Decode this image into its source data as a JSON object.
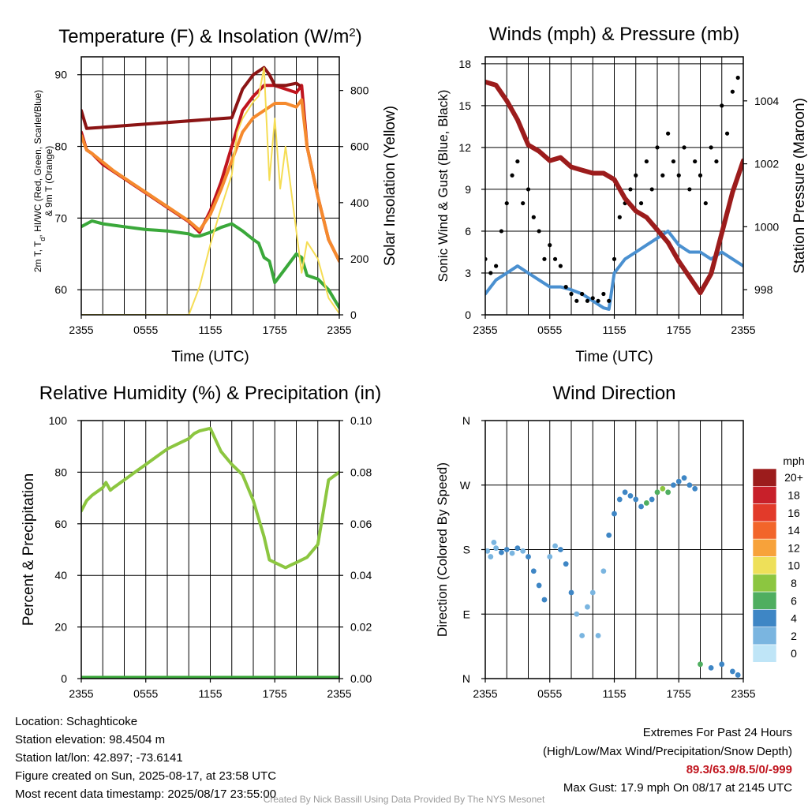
{
  "colors": {
    "temp_red": "#c0151e",
    "temp_dark": "#8b1414",
    "nine_m_orange": "#f58a2e",
    "dewpoint_green": "#3aa83a",
    "insolation_yellow": "#f5dd55",
    "wind_blue": "#4a90d0",
    "gust_black": "#000000",
    "pressure_maroon": "#9c1c1c",
    "rh_green": "#8cc640",
    "precip_green": "#3aa83a",
    "extremes_red": "#c0151e",
    "credit_gray": "#9a9a9a"
  },
  "chart_data": [
    {
      "type": "line",
      "title": "Temperature (F) & Insolation (W/m²)",
      "xlabel": "Time (UTC)",
      "ylabel": "2m T, Td, HI/WC (Red, Green, Scarlet/Blue) & 9m T (Orange)",
      "y2label": "Solar Insolation (Yellow)",
      "x_ticks": [
        "2355",
        "0555",
        "1155",
        "1755",
        "2355"
      ],
      "y_ticks": [
        60,
        70,
        80,
        90
      ],
      "y2_ticks": [
        0,
        200,
        400,
        600,
        800
      ],
      "ylim": [
        56.5,
        92.5
      ],
      "y2lim": [
        0,
        920
      ],
      "xlim": [
        0,
        24
      ],
      "grid": true,
      "series": [
        {
          "name": "2m T",
          "color": "#c0151e",
          "x": [
            0,
            0.5,
            1,
            2,
            3,
            4,
            5,
            6,
            7,
            8,
            9,
            10,
            11,
            12,
            13,
            14,
            15,
            16,
            17,
            18,
            19,
            20,
            20.5,
            21,
            22,
            23,
            24
          ],
          "y": [
            82,
            79.5,
            79,
            77.5,
            76.5,
            75.5,
            74.5,
            73.5,
            72.5,
            71.5,
            70.5,
            69.5,
            68,
            71,
            75,
            80,
            85,
            87,
            88.5,
            88.5,
            88,
            87.5,
            88.5,
            80,
            73,
            67,
            64
          ]
        },
        {
          "name": "9m T",
          "color": "#f58a2e",
          "x": [
            0,
            0.5,
            1,
            2,
            3,
            4,
            5,
            6,
            7,
            8,
            9,
            10,
            11,
            12,
            13,
            14,
            15,
            16,
            17,
            18,
            19,
            20,
            20.5,
            21,
            22,
            23,
            24
          ],
          "y": [
            81.5,
            79.5,
            79,
            77.8,
            76.6,
            75.6,
            74.6,
            73.6,
            72.6,
            71.6,
            70.6,
            69.6,
            68.3,
            70.5,
            74,
            78,
            82,
            84,
            85,
            86,
            86,
            85.5,
            86.5,
            80,
            73,
            67,
            64
          ]
        },
        {
          "name": "HI/WC",
          "color": "#8b1414",
          "x": [
            0,
            0.5,
            14,
            15,
            16,
            17,
            17.5,
            18,
            19,
            20,
            20.3
          ],
          "y": [
            85,
            82.5,
            84,
            88,
            90,
            91,
            90,
            88.5,
            88.5,
            88.8,
            88.5
          ]
        },
        {
          "name": "Td",
          "color": "#3aa83a",
          "x": [
            0,
            1,
            2,
            3,
            4,
            5,
            6,
            7,
            8,
            9,
            10,
            10.5,
            11,
            12,
            13,
            14,
            15,
            16,
            16.5,
            17,
            17.5,
            18,
            19,
            20,
            20.5,
            21,
            22,
            23,
            24
          ],
          "y": [
            68.8,
            69.6,
            69.2,
            69,
            68.8,
            68.6,
            68.4,
            68.3,
            68.2,
            68,
            67.8,
            67.5,
            67.5,
            68,
            68.7,
            69.2,
            68.2,
            67,
            66.5,
            64.5,
            64,
            61,
            63,
            65,
            64.5,
            62,
            61.5,
            60,
            57.5
          ]
        },
        {
          "name": "Insolation",
          "color": "#f5dd55",
          "axis": "y2",
          "x": [
            0,
            10,
            11,
            12,
            13,
            14,
            14.5,
            15,
            16,
            16.5,
            17,
            17.5,
            18,
            18.5,
            19,
            20,
            20.5,
            21,
            22,
            23,
            24
          ],
          "y": [
            0,
            0,
            100,
            250,
            380,
            500,
            650,
            700,
            760,
            780,
            880,
            480,
            700,
            450,
            600,
            300,
            150,
            260,
            200,
            60,
            5
          ]
        }
      ]
    },
    {
      "type": "line",
      "title": "Winds (mph) & Pressure (mb)",
      "xlabel": "Time (UTC)",
      "ylabel": "Sonic Wind & Gust (Blue, Black)",
      "y2label": "Station Pressure (Maroon)",
      "x_ticks": [
        "2355",
        "0555",
        "1155",
        "1755",
        "2355"
      ],
      "y_ticks": [
        0,
        3,
        6,
        9,
        12,
        15,
        18
      ],
      "y2_ticks": [
        998,
        1000,
        1002,
        1004
      ],
      "ylim": [
        0,
        18.5
      ],
      "y2lim": [
        997.2,
        1005.4
      ],
      "xlim": [
        0,
        24
      ],
      "grid": true,
      "series": [
        {
          "name": "Sonic Wind",
          "color": "#4a90d0",
          "x": [
            0,
            1,
            2,
            3,
            4,
            5,
            6,
            7,
            8,
            9,
            10,
            11,
            11.5,
            12,
            13,
            14,
            15,
            16,
            17,
            18,
            19,
            20,
            21,
            22,
            23,
            24
          ],
          "y": [
            1.5,
            2.5,
            3,
            3.5,
            3,
            2.5,
            2,
            2,
            1.8,
            1.5,
            1,
            0.5,
            0.4,
            3,
            4,
            4.5,
            5,
            5.5,
            6,
            5,
            4.5,
            4.5,
            4,
            4.5,
            4,
            3.5
          ]
        },
        {
          "name": "Gust",
          "color": "#000000",
          "mode": "markers",
          "x": [
            0,
            0.5,
            1,
            1.5,
            2,
            2.5,
            3,
            3.5,
            4,
            4.5,
            5,
            5.5,
            6,
            6.5,
            7,
            7.5,
            8,
            8.5,
            9,
            9.5,
            10,
            10.5,
            11,
            11.5,
            12,
            12.5,
            13,
            13.5,
            14,
            14.5,
            15,
            15.5,
            16,
            16.5,
            17,
            17.5,
            18,
            18.5,
            19,
            19.5,
            20,
            20.5,
            21,
            21.5,
            22,
            22.5,
            23,
            23.5
          ],
          "y": [
            4,
            3,
            3.5,
            6,
            8,
            10,
            11,
            8,
            9,
            7,
            6,
            4,
            5,
            4,
            3.5,
            2,
            1.5,
            1,
            1.5,
            1,
            1.2,
            1,
            1.5,
            1,
            4,
            7,
            8,
            9,
            10,
            8,
            11,
            9,
            12,
            10,
            13,
            11,
            10,
            12,
            9,
            11,
            10,
            8,
            12,
            11,
            15,
            13,
            16,
            17
          ]
        },
        {
          "name": "Pressure",
          "color": "#9c1c1c",
          "axis": "y2",
          "x": [
            0,
            1,
            2,
            3,
            4,
            5,
            6,
            7,
            8,
            9,
            10,
            11,
            12,
            13,
            14,
            15,
            16,
            17,
            18,
            19,
            20,
            21,
            22,
            23,
            24
          ],
          "y": [
            1004.6,
            1004.5,
            1004.0,
            1003.4,
            1002.6,
            1002.4,
            1002.1,
            1002.2,
            1001.9,
            1001.8,
            1001.7,
            1001.7,
            1001.5,
            1000.9,
            1000.5,
            1000.3,
            999.9,
            999.5,
            998.9,
            998.4,
            997.9,
            998.5,
            999.8,
            1001.1,
            1002.1
          ]
        }
      ]
    },
    {
      "type": "line",
      "title": "Relative Humidity (%) & Precipitation (in)",
      "xlabel": "",
      "ylabel": "Percent & Precipitation",
      "x_ticks": [
        "2355",
        "0555",
        "1155",
        "1755",
        "2355"
      ],
      "y_ticks": [
        0,
        20,
        40,
        60,
        80,
        100
      ],
      "y2_ticks": [
        "0.00",
        "0.02",
        "0.04",
        "0.06",
        "0.08",
        "0.10"
      ],
      "ylim": [
        0,
        100
      ],
      "y2lim": [
        0,
        0.1
      ],
      "xlim": [
        0,
        24
      ],
      "grid": true,
      "series": [
        {
          "name": "RH",
          "color": "#8cc640",
          "x": [
            0,
            0.5,
            1,
            2,
            2.3,
            2.7,
            3,
            4,
            5,
            6,
            7,
            8,
            9,
            10,
            10.5,
            11,
            12,
            13,
            14,
            15,
            16,
            16.5,
            17,
            17.5,
            18,
            19,
            19.5,
            20,
            21,
            22,
            23,
            24
          ],
          "y": [
            65,
            69,
            71,
            74,
            76,
            73,
            74,
            77,
            80,
            83,
            86,
            89,
            91,
            93,
            95,
            96,
            97,
            88,
            83,
            79,
            69,
            62,
            55,
            46,
            45,
            43,
            44,
            45,
            47,
            52,
            77,
            80
          ]
        },
        {
          "name": "Precipitation",
          "color": "#3aa83a",
          "axis": "y2",
          "x": [
            0,
            24
          ],
          "y": [
            0,
            0
          ]
        }
      ]
    },
    {
      "type": "scatter",
      "title": "Wind Direction",
      "xlabel": "",
      "ylabel": "Direction (Colored By Speed)",
      "x_ticks": [
        "2355",
        "0555",
        "1155",
        "1755",
        "2355"
      ],
      "y_ticks": [
        "N",
        "E",
        "S",
        "W",
        "N"
      ],
      "ylim": [
        0,
        360
      ],
      "xlim": [
        0,
        24
      ],
      "grid": true,
      "colorbar": {
        "title": "mph",
        "labels": [
          "20+",
          "18",
          "16",
          "14",
          "12",
          "10",
          "8",
          "6",
          "4",
          "2",
          "0"
        ],
        "colors": [
          "#9c1c1c",
          "#c8202a",
          "#e23a2a",
          "#f2652a",
          "#f7a23a",
          "#eee059",
          "#8cc640",
          "#4fae60",
          "#3e86c5",
          "#7ab5e0",
          "#bfe5f7"
        ]
      },
      "points": [
        {
          "x": 0.2,
          "y": 178,
          "s": 2
        },
        {
          "x": 0.5,
          "y": 170,
          "s": 1
        },
        {
          "x": 0.8,
          "y": 190,
          "s": 1
        },
        {
          "x": 1,
          "y": 182,
          "s": 2
        },
        {
          "x": 1.5,
          "y": 176,
          "s": 3
        },
        {
          "x": 2,
          "y": 180,
          "s": 3
        },
        {
          "x": 2.5,
          "y": 175,
          "s": 2
        },
        {
          "x": 3,
          "y": 182,
          "s": 3
        },
        {
          "x": 3.5,
          "y": 178,
          "s": 2
        },
        {
          "x": 4,
          "y": 170,
          "s": 3
        },
        {
          "x": 4.5,
          "y": 150,
          "s": 4
        },
        {
          "x": 5,
          "y": 130,
          "s": 3
        },
        {
          "x": 5.5,
          "y": 110,
          "s": 4
        },
        {
          "x": 6,
          "y": 170,
          "s": 2
        },
        {
          "x": 6.5,
          "y": 185,
          "s": 2
        },
        {
          "x": 7,
          "y": 180,
          "s": 3
        },
        {
          "x": 7.5,
          "y": 160,
          "s": 3
        },
        {
          "x": 8,
          "y": 120,
          "s": 3
        },
        {
          "x": 8.5,
          "y": 90,
          "s": 2
        },
        {
          "x": 9,
          "y": 60,
          "s": 1
        },
        {
          "x": 9.5,
          "y": 100,
          "s": 1
        },
        {
          "x": 10,
          "y": 120,
          "s": 2
        },
        {
          "x": 10.5,
          "y": 60,
          "s": 1
        },
        {
          "x": 11,
          "y": 150,
          "s": 2
        },
        {
          "x": 11.5,
          "y": 200,
          "s": 3
        },
        {
          "x": 12,
          "y": 230,
          "s": 4
        },
        {
          "x": 12.5,
          "y": 250,
          "s": 4
        },
        {
          "x": 13,
          "y": 260,
          "s": 4
        },
        {
          "x": 13.5,
          "y": 255,
          "s": 3
        },
        {
          "x": 14,
          "y": 250,
          "s": 4
        },
        {
          "x": 14.5,
          "y": 240,
          "s": 4
        },
        {
          "x": 15,
          "y": 245,
          "s": 5
        },
        {
          "x": 15.5,
          "y": 250,
          "s": 4
        },
        {
          "x": 16,
          "y": 260,
          "s": 6
        },
        {
          "x": 16.5,
          "y": 265,
          "s": 7
        },
        {
          "x": 17,
          "y": 260,
          "s": 6
        },
        {
          "x": 17.5,
          "y": 270,
          "s": 4
        },
        {
          "x": 18,
          "y": 275,
          "s": 4
        },
        {
          "x": 18.5,
          "y": 280,
          "s": 4
        },
        {
          "x": 19,
          "y": 270,
          "s": 4
        },
        {
          "x": 19.5,
          "y": 265,
          "s": 4
        },
        {
          "x": 20,
          "y": 20,
          "s": 6
        },
        {
          "x": 21,
          "y": 15,
          "s": 4
        },
        {
          "x": 22,
          "y": 20,
          "s": 4
        },
        {
          "x": 23,
          "y": 10,
          "s": 4
        },
        {
          "x": 23.5,
          "y": 5,
          "s": 4
        }
      ]
    }
  ],
  "footer": {
    "location": "Location: Schaghticoke",
    "elevation": "Station elevation: 98.4504 m",
    "latlon": "Station lat/lon: 42.897; -73.6141",
    "created": "Figure created on Sun, 2025-08-17, at 23:58 UTC",
    "recent": "Most recent data timestamp: 2025/08/17 23:55:00",
    "extremes_title": "Extremes For Past 24 Hours",
    "extremes_subtitle": "(High/Low/Max Wind/Precipitation/Snow Depth)",
    "extremes_values": "89.3/63.9/8.5/0/-999",
    "max_gust": "Max Gust: 17.9 mph On 08/17 at 2145 UTC",
    "credit": "Created By Nick Bassill Using Data Provided By The NYS Mesonet"
  }
}
